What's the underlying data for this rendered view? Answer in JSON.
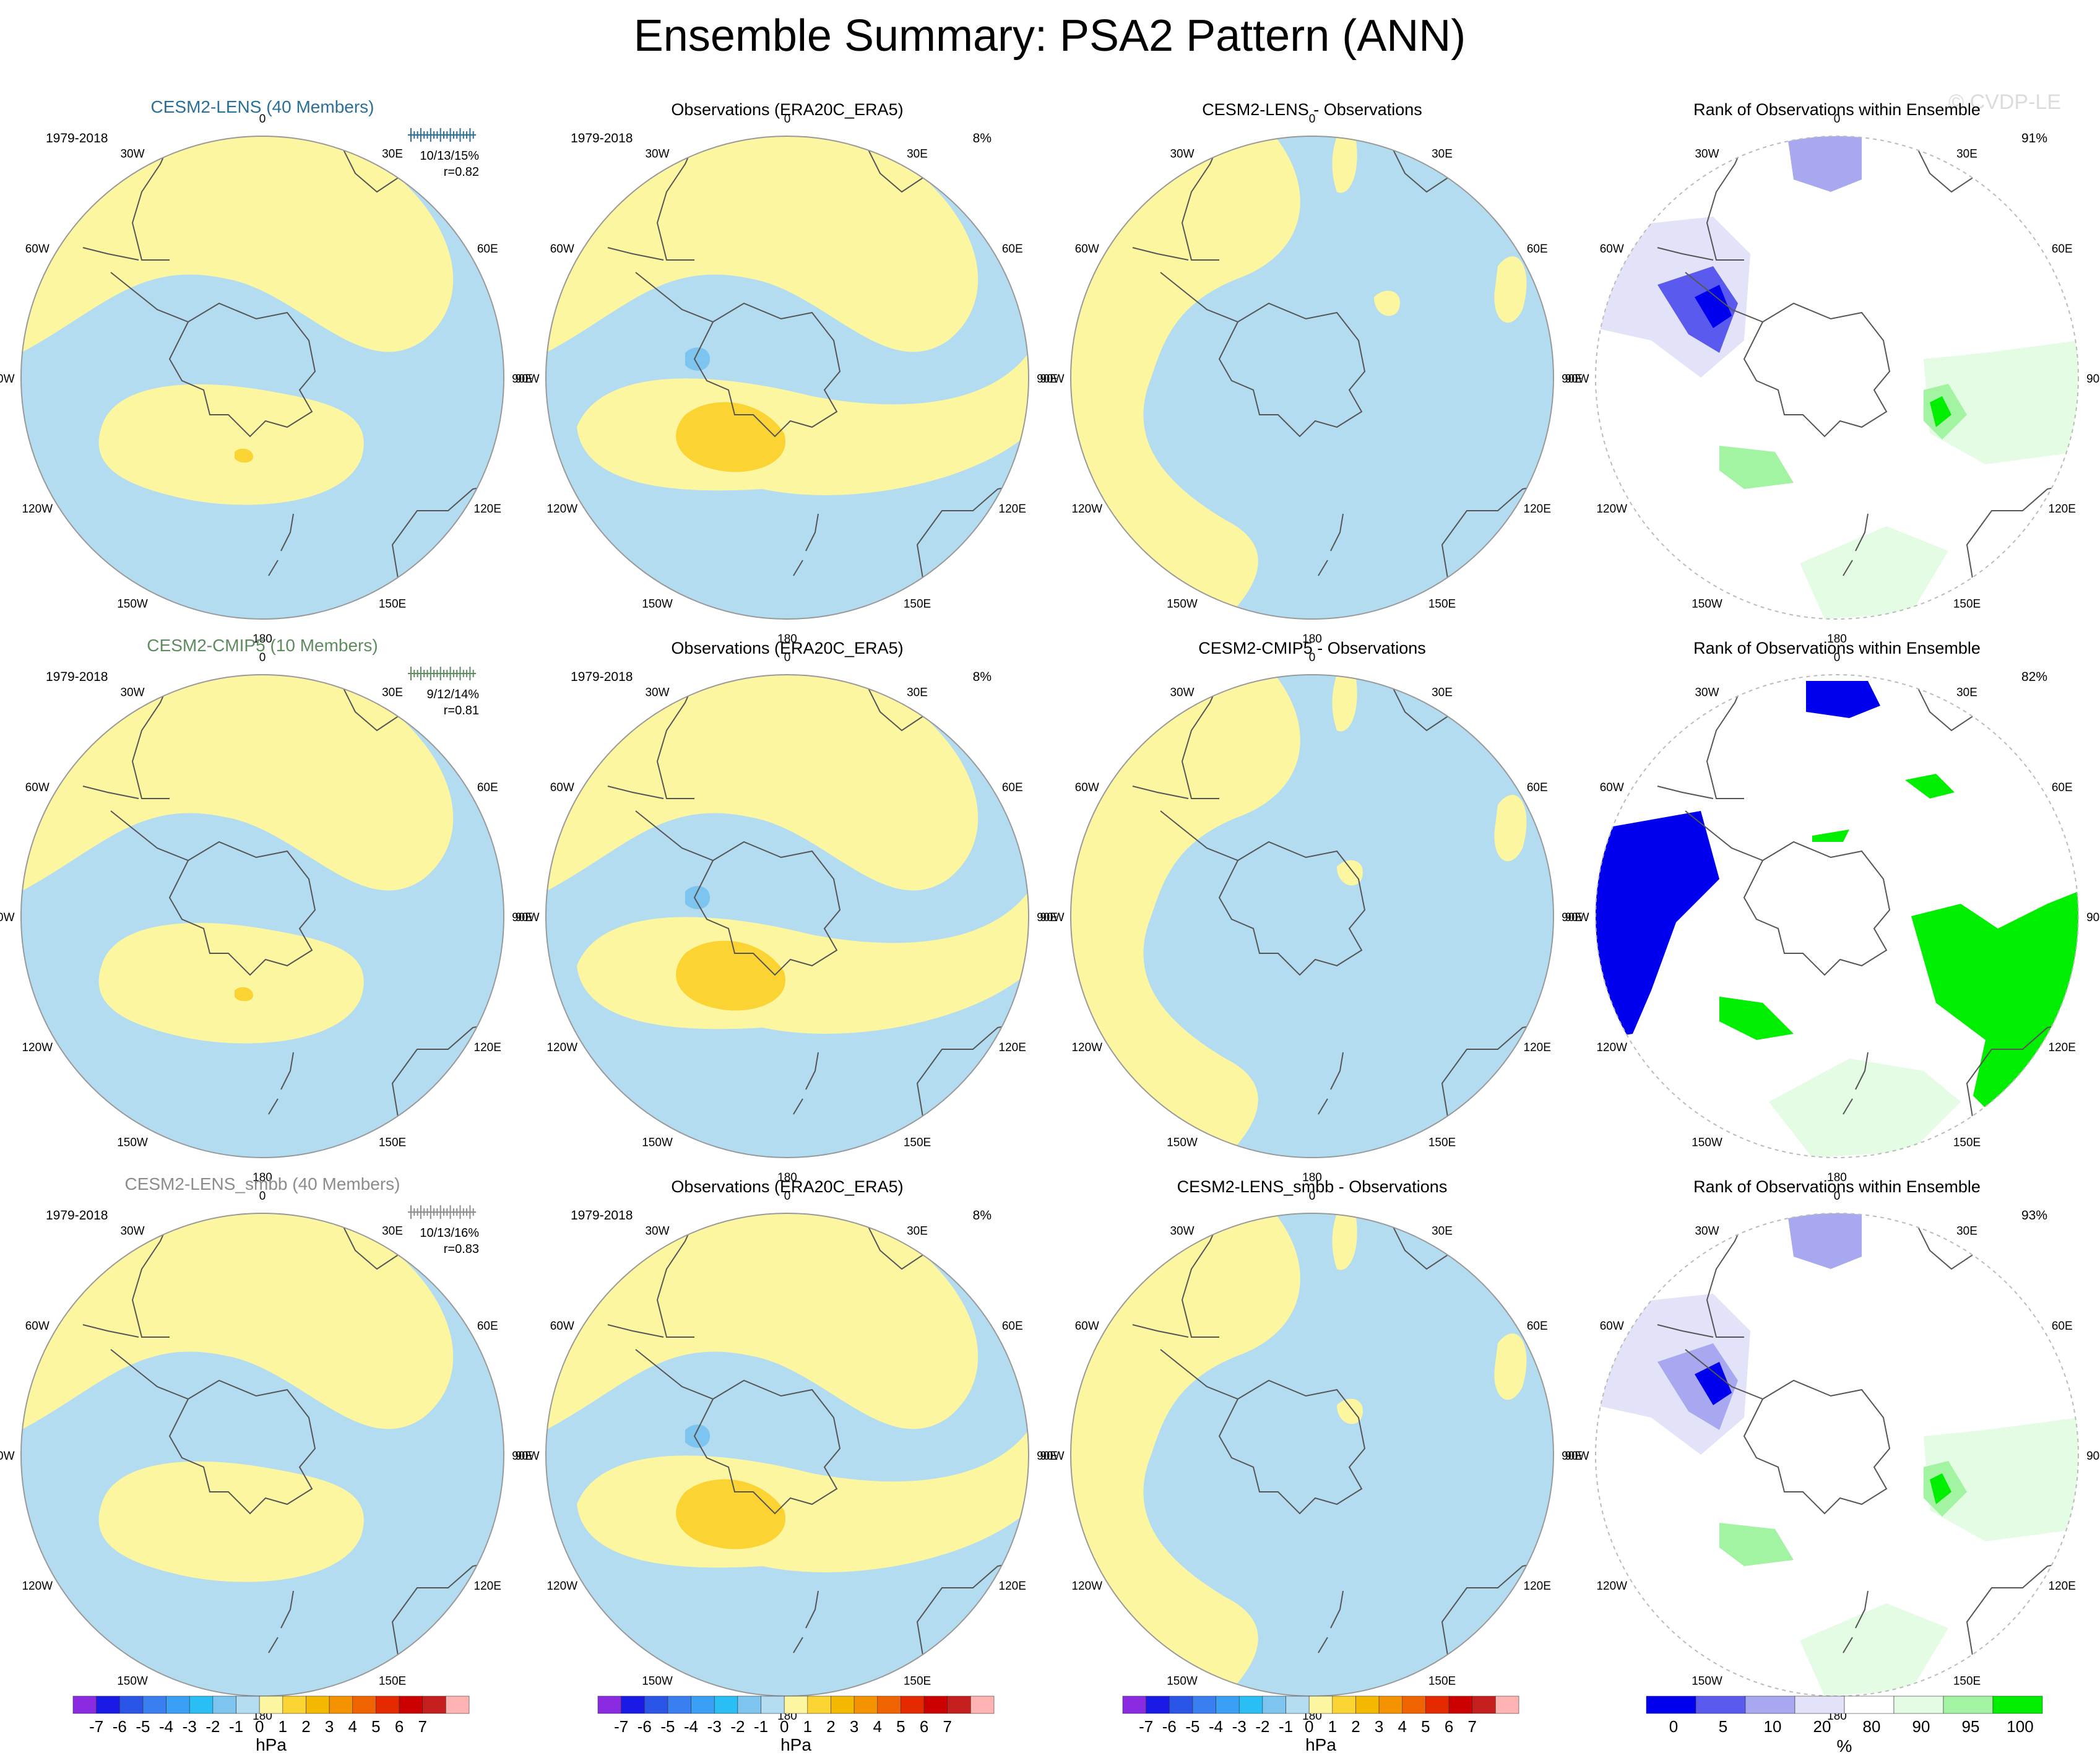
{
  "figure": {
    "title": "Ensemble Summary: PSA2 Pattern (ANN)",
    "watermark": "© CVDP-LE"
  },
  "colors": {
    "pos1": "#fdf6a1",
    "pos2": "#fbd434",
    "neg1": "#b3dcf0",
    "neg2": "#7dc5ee",
    "rank0": "#0000ee",
    "rank5": "#5a5aee",
    "rank10": "#a8a8f0",
    "rank20": "#e2e2f8",
    "rank80": "#ffffff",
    "rank90": "#e4fbe4",
    "rank95": "#a2f4a2",
    "rank100": "#00ee00",
    "coast": "#555555"
  },
  "lon_labels": [
    "0",
    "30E",
    "60E",
    "90E",
    "120E",
    "150E",
    "180",
    "150W",
    "120W",
    "90W",
    "60W",
    "30W"
  ],
  "rows": [
    {
      "model": "CESM2-LENS (40 Members)",
      "model_color": "#2a6f97",
      "period": "1979-2018",
      "stats": "10/13/15%",
      "corr": "r=0.82",
      "obs_title": "Observations (ERA20C_ERA5)",
      "obs_period": "1979-2018",
      "obs_pct": "8%",
      "diff_title": "CESM2-LENS - Observations",
      "rank_title": "Rank of Observations within Ensemble",
      "rank_pct": "91%"
    },
    {
      "model": "CESM2-CMIP5 (10 Members)",
      "model_color": "#5e8c5e",
      "period": "1979-2018",
      "stats": "9/12/14%",
      "corr": "r=0.81",
      "obs_title": "Observations (ERA20C_ERA5)",
      "obs_period": "1979-2018",
      "obs_pct": "8%",
      "diff_title": "CESM2-CMIP5 - Observations",
      "rank_title": "Rank of Observations within Ensemble",
      "rank_pct": "82%"
    },
    {
      "model": "CESM2-LENS_smbb (40 Members)",
      "model_color": "#8c8c8c",
      "period": "1979-2018",
      "stats": "10/13/16%",
      "corr": "r=0.83",
      "obs_title": "Observations (ERA20C_ERA5)",
      "obs_period": "1979-2018",
      "obs_pct": "8%",
      "diff_title": "CESM2-LENS_smbb - Observations",
      "rank_title": "Rank of Observations within Ensemble",
      "rank_pct": "93%"
    }
  ],
  "chart_data": {
    "type": "heatmap",
    "projection": "south polar stereographic",
    "title": "Ensemble Summary: PSA2 Pattern (ANN)",
    "panels_per_row": [
      "ensemble mean pattern",
      "observed pattern",
      "model minus observations",
      "rank of observations within ensemble"
    ],
    "pattern_colorbar": {
      "label": "hPa",
      "levels": [
        "-7",
        "-6",
        "-5",
        "-4",
        "-3",
        "-2",
        "-1",
        "0",
        "1",
        "2",
        "3",
        "4",
        "5",
        "6",
        "7"
      ],
      "colors": [
        "#8a2be2",
        "#1a1ae6",
        "#2a55e6",
        "#3a7ff0",
        "#3aa0f5",
        "#29bff5",
        "#7dc5ee",
        "#b3dcf0",
        "#fdf6a1",
        "#fbd434",
        "#f5b800",
        "#f59200",
        "#f06400",
        "#e62a00",
        "#cc0000",
        "#c41e1e",
        "#ffb3b3"
      ]
    },
    "rank_colorbar": {
      "label": "%",
      "levels": [
        "0",
        "5",
        "10",
        "20",
        "80",
        "90",
        "95",
        "100"
      ],
      "colors": [
        "#0000ee",
        "#5a5aee",
        "#a8a8f0",
        "#e2e2f8",
        "#ffffff",
        "#e4fbe4",
        "#a2f4a2",
        "#00ee00"
      ]
    }
  }
}
